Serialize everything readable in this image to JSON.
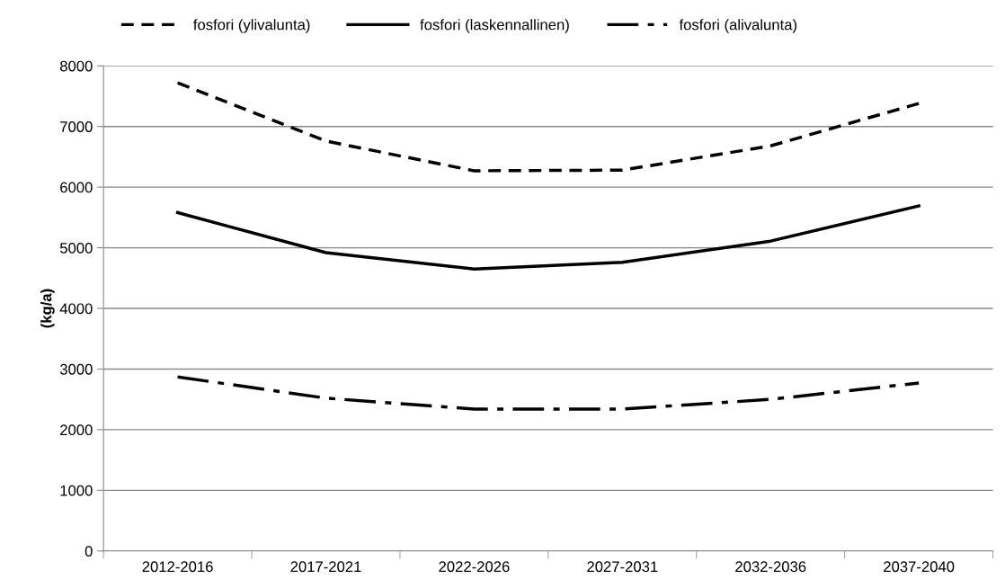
{
  "chart_data": {
    "type": "line",
    "ylabel": "(kg/a)",
    "categories": [
      "2012-2016",
      "2017-2021",
      "2022-2026",
      "2027-2031",
      "2032-2036",
      "2037-2040"
    ],
    "series": [
      {
        "name": "fosfori (ylivalunta)",
        "color": "#000000",
        "line_style": "dashed",
        "values": [
          7720,
          6760,
          6270,
          6280,
          6680,
          7380
        ]
      },
      {
        "name": "fosfori (laskennallinen)",
        "color": "#000000",
        "line_style": "solid",
        "values": [
          5580,
          4920,
          4650,
          4760,
          5110,
          5690
        ]
      },
      {
        "name": "fosfori (alivalunta)",
        "color": "#000000",
        "line_style": "dashdot",
        "values": [
          2870,
          2520,
          2340,
          2340,
          2500,
          2770
        ]
      }
    ],
    "ylim": [
      0,
      8000
    ],
    "yticks": [
      0,
      1000,
      2000,
      3000,
      4000,
      5000,
      6000,
      7000,
      8000
    ],
    "grid": "y",
    "legend": "top",
    "marker": "none"
  }
}
